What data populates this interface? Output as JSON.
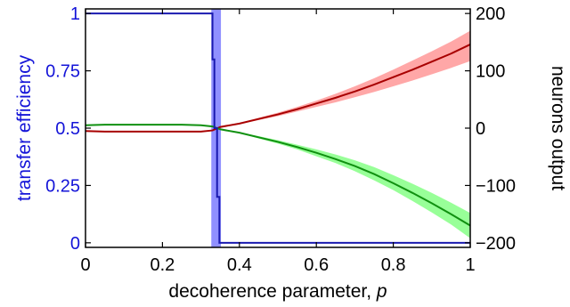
{
  "chart_data": {
    "type": "line",
    "xlabel": "decoherence parameter, p",
    "ylabel_left": "transfer efficiency",
    "ylabel_right": "neurons output",
    "xlim": [
      0,
      1
    ],
    "ylim_left": [
      -0.02,
      1.02
    ],
    "ylim_right": [
      -208,
      208
    ],
    "x_ticks": [
      "0",
      "0.2",
      "0.4",
      "0.6",
      "0.8",
      "1"
    ],
    "x_tick_values": [
      0,
      0.2,
      0.4,
      0.6,
      0.8,
      1
    ],
    "y_left_ticks": [
      "0",
      "0.25",
      "0.5",
      "0.75",
      "1"
    ],
    "y_left_tick_values": [
      0,
      0.25,
      0.5,
      0.75,
      1
    ],
    "y_right_ticks": [
      "−200",
      "−100",
      "0",
      "100",
      "200"
    ],
    "y_right_tick_values": [
      -200,
      -100,
      0,
      100,
      200
    ],
    "colors": {
      "efficiency": "#1a1ab0",
      "efficiency_band": "#6b6bff",
      "red_line": "#a80000",
      "red_band": "#ff9d9d",
      "green_line": "#109010",
      "green_band": "#8dff8d",
      "left_axis_text": "#1414d8"
    },
    "series": [
      {
        "axis": "left",
        "x": [
          0,
          0.33,
          0.33,
          0.335,
          0.335,
          0.342,
          0.342,
          0.348,
          0.348,
          1
        ],
        "values": [
          1,
          1,
          0.8,
          0.8,
          0.5,
          0.5,
          0.2,
          0.2,
          0,
          0
        ]
      },
      {
        "axis": "right",
        "x": [
          0,
          0.05,
          0.1,
          0.15,
          0.2,
          0.25,
          0.3,
          0.33,
          0.35,
          0.4,
          0.45,
          0.5,
          0.55,
          0.6,
          0.65,
          0.7,
          0.75,
          0.8,
          0.85,
          0.9,
          0.95,
          1
        ],
        "values": [
          -5,
          -6,
          -6,
          -6,
          -6,
          -6,
          -6,
          -4,
          2,
          8,
          16,
          24,
          33,
          43,
          53,
          64,
          76,
          89,
          102,
          116,
          130,
          146
        ],
        "band_low": [
          -5,
          -6,
          -6,
          -6,
          -6,
          -6,
          -6,
          -4,
          1,
          7,
          14,
          21,
          29,
          37,
          45,
          54,
          63,
          73,
          83,
          94,
          105,
          117
        ],
        "band_high": [
          -5,
          -6,
          -6,
          -6,
          -6,
          -6,
          -6,
          -4,
          3,
          9,
          18,
          27,
          37,
          48,
          60,
          73,
          87,
          102,
          118,
          134,
          151,
          170
        ]
      },
      {
        "axis": "right",
        "x": [
          0,
          0.05,
          0.1,
          0.15,
          0.2,
          0.25,
          0.3,
          0.33,
          0.35,
          0.4,
          0.45,
          0.5,
          0.55,
          0.6,
          0.65,
          0.7,
          0.75,
          0.8,
          0.85,
          0.9,
          0.95,
          1
        ],
        "values": [
          5,
          6,
          6,
          6,
          6,
          6,
          5,
          3,
          -2,
          -8,
          -16,
          -24,
          -33,
          -43,
          -54,
          -66,
          -80,
          -96,
          -113,
          -131,
          -150,
          -170
        ],
        "band_low": [
          5,
          6,
          6,
          6,
          6,
          6,
          5,
          3,
          -3,
          -9,
          -18,
          -27,
          -37,
          -49,
          -61,
          -75,
          -91,
          -108,
          -127,
          -147,
          -168,
          -192
        ],
        "band_high": [
          5,
          6,
          6,
          6,
          6,
          6,
          5,
          3,
          -1,
          -7,
          -14,
          -21,
          -29,
          -37,
          -46,
          -56,
          -68,
          -82,
          -97,
          -113,
          -130,
          -148
        ]
      }
    ]
  }
}
